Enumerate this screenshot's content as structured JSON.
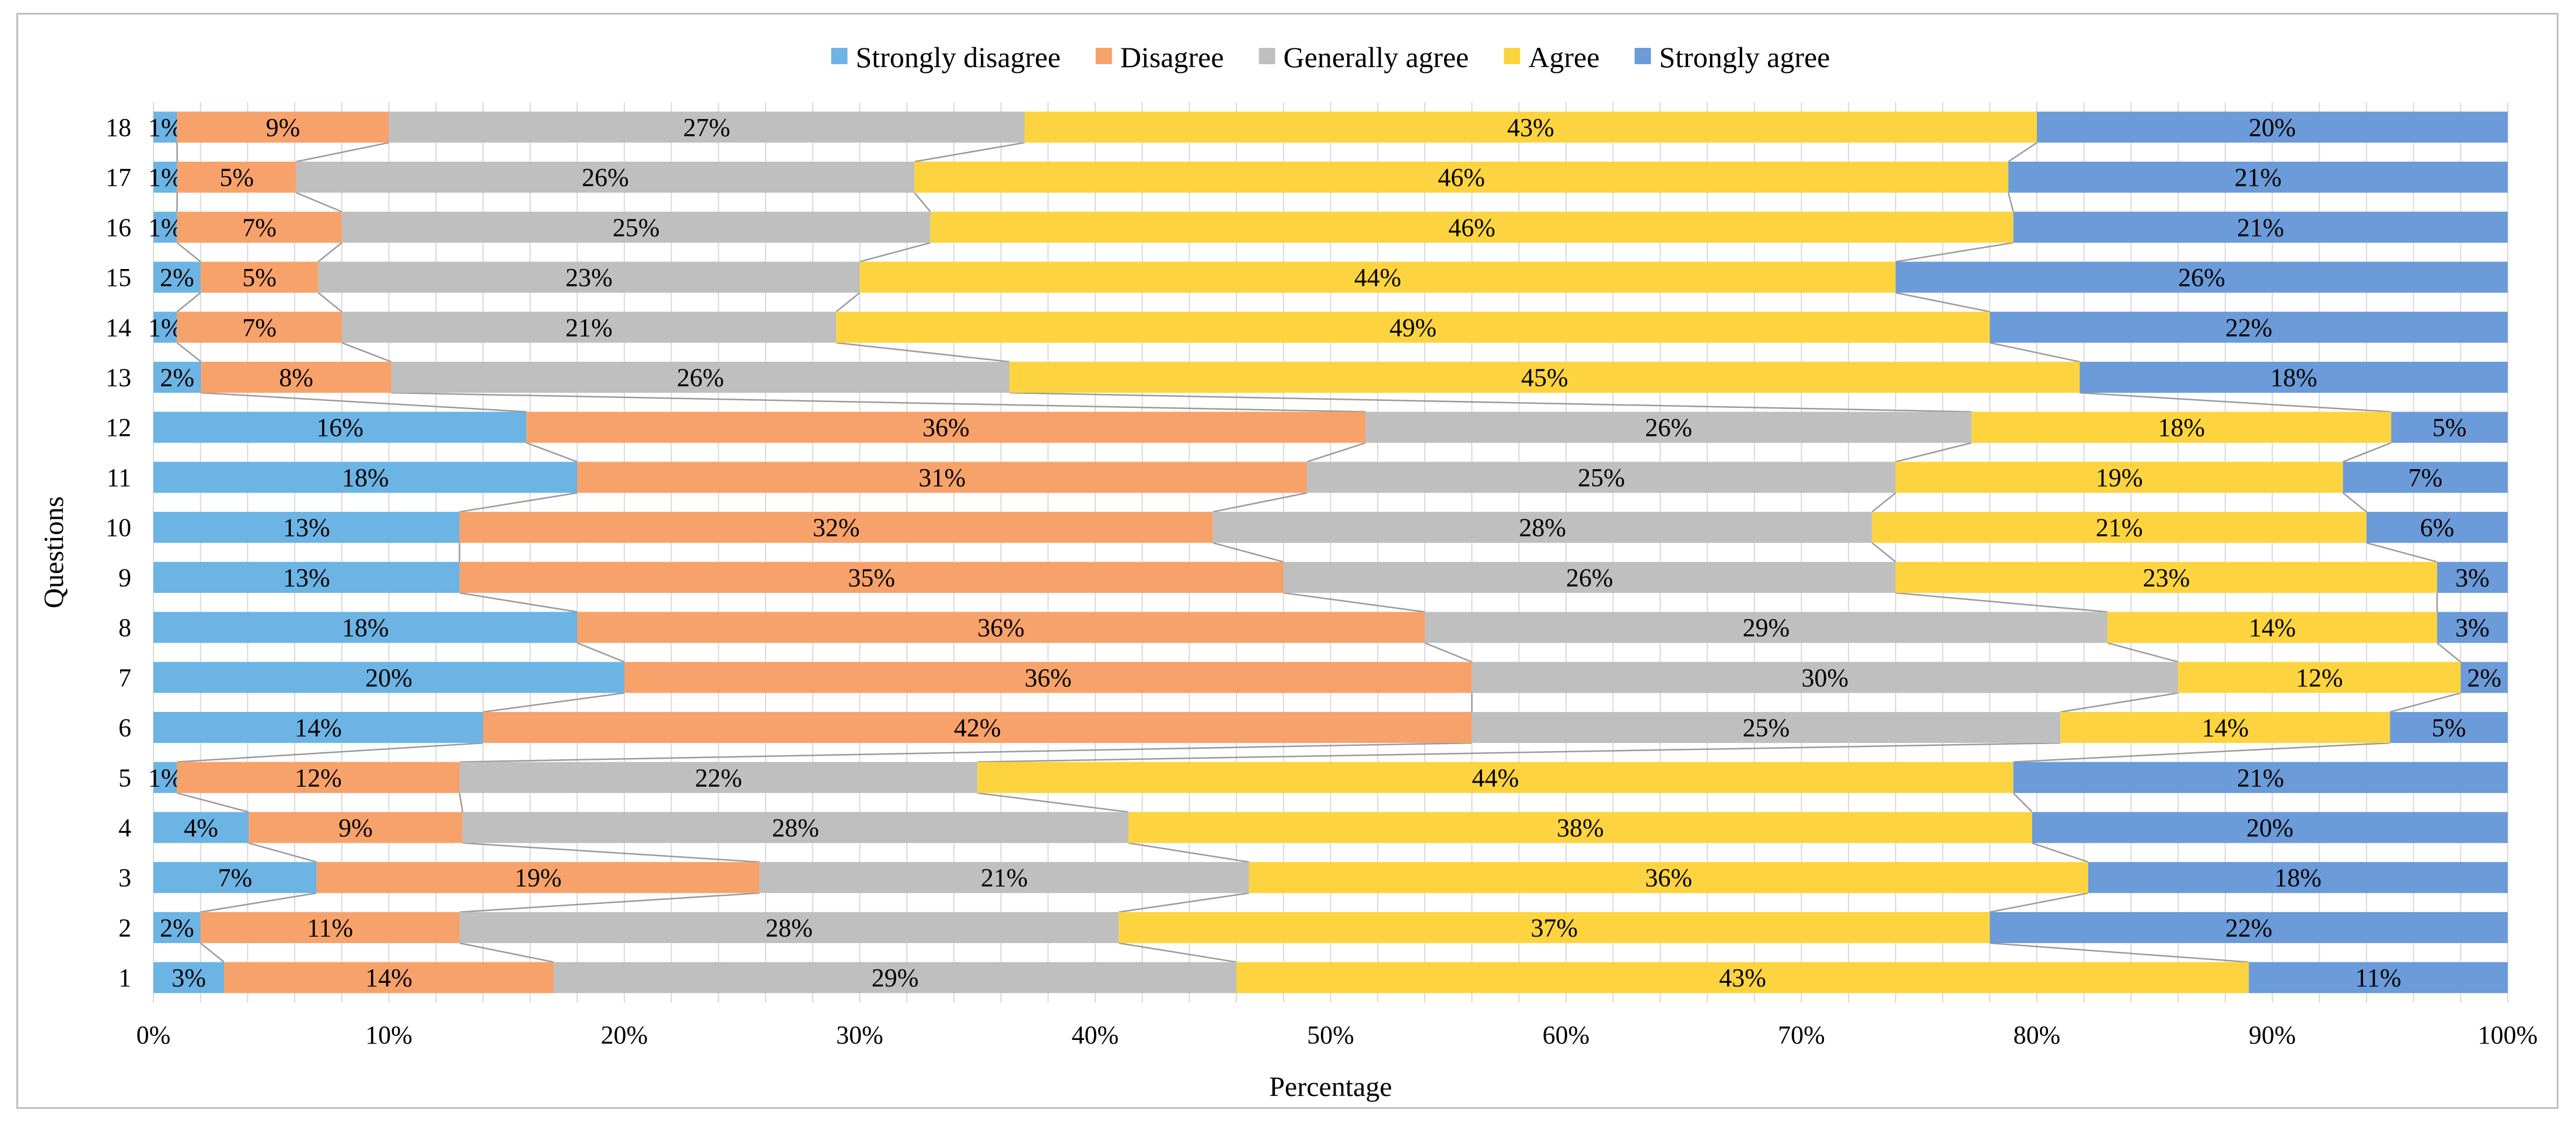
{
  "chart_data": {
    "type": "bar",
    "orientation": "horizontal",
    "stacked": "100%",
    "title": "",
    "xlabel": "Percentage",
    "ylabel": "Questions",
    "xlim": [
      0,
      100
    ],
    "xticks": [
      "0%",
      "10%",
      "20%",
      "30%",
      "40%",
      "50%",
      "60%",
      "70%",
      "80%",
      "90%",
      "100%"
    ],
    "grid": true,
    "legend_position": "top-center",
    "categories": [
      "1",
      "2",
      "3",
      "4",
      "5",
      "6",
      "7",
      "8",
      "9",
      "10",
      "11",
      "12",
      "13",
      "14",
      "15",
      "16",
      "17",
      "18"
    ],
    "series": [
      {
        "name": "Strongly disagree",
        "color": "#6cb4e4",
        "values": [
          3,
          2,
          7,
          4,
          1,
          14,
          20,
          18,
          13,
          13,
          18,
          16,
          2,
          1,
          2,
          1,
          1,
          1
        ]
      },
      {
        "name": "Disagree",
        "color": "#f7a26a",
        "values": [
          14,
          11,
          19,
          9,
          12,
          42,
          36,
          36,
          35,
          32,
          31,
          36,
          8,
          7,
          5,
          7,
          5,
          9
        ]
      },
      {
        "name": "Generally agree",
        "color": "#bfbfbf",
        "values": [
          29,
          28,
          21,
          28,
          22,
          25,
          30,
          29,
          26,
          28,
          25,
          26,
          26,
          21,
          23,
          25,
          26,
          27
        ]
      },
      {
        "name": "Agree",
        "color": "#fdd43f",
        "values": [
          43,
          37,
          36,
          38,
          44,
          14,
          12,
          14,
          23,
          21,
          19,
          18,
          45,
          49,
          44,
          46,
          46,
          43
        ]
      },
      {
        "name": "Strongly agree",
        "color": "#6b9bd8",
        "values": [
          11,
          22,
          18,
          20,
          21,
          5,
          2,
          3,
          3,
          6,
          7,
          5,
          18,
          22,
          26,
          21,
          21,
          20
        ]
      }
    ]
  }
}
